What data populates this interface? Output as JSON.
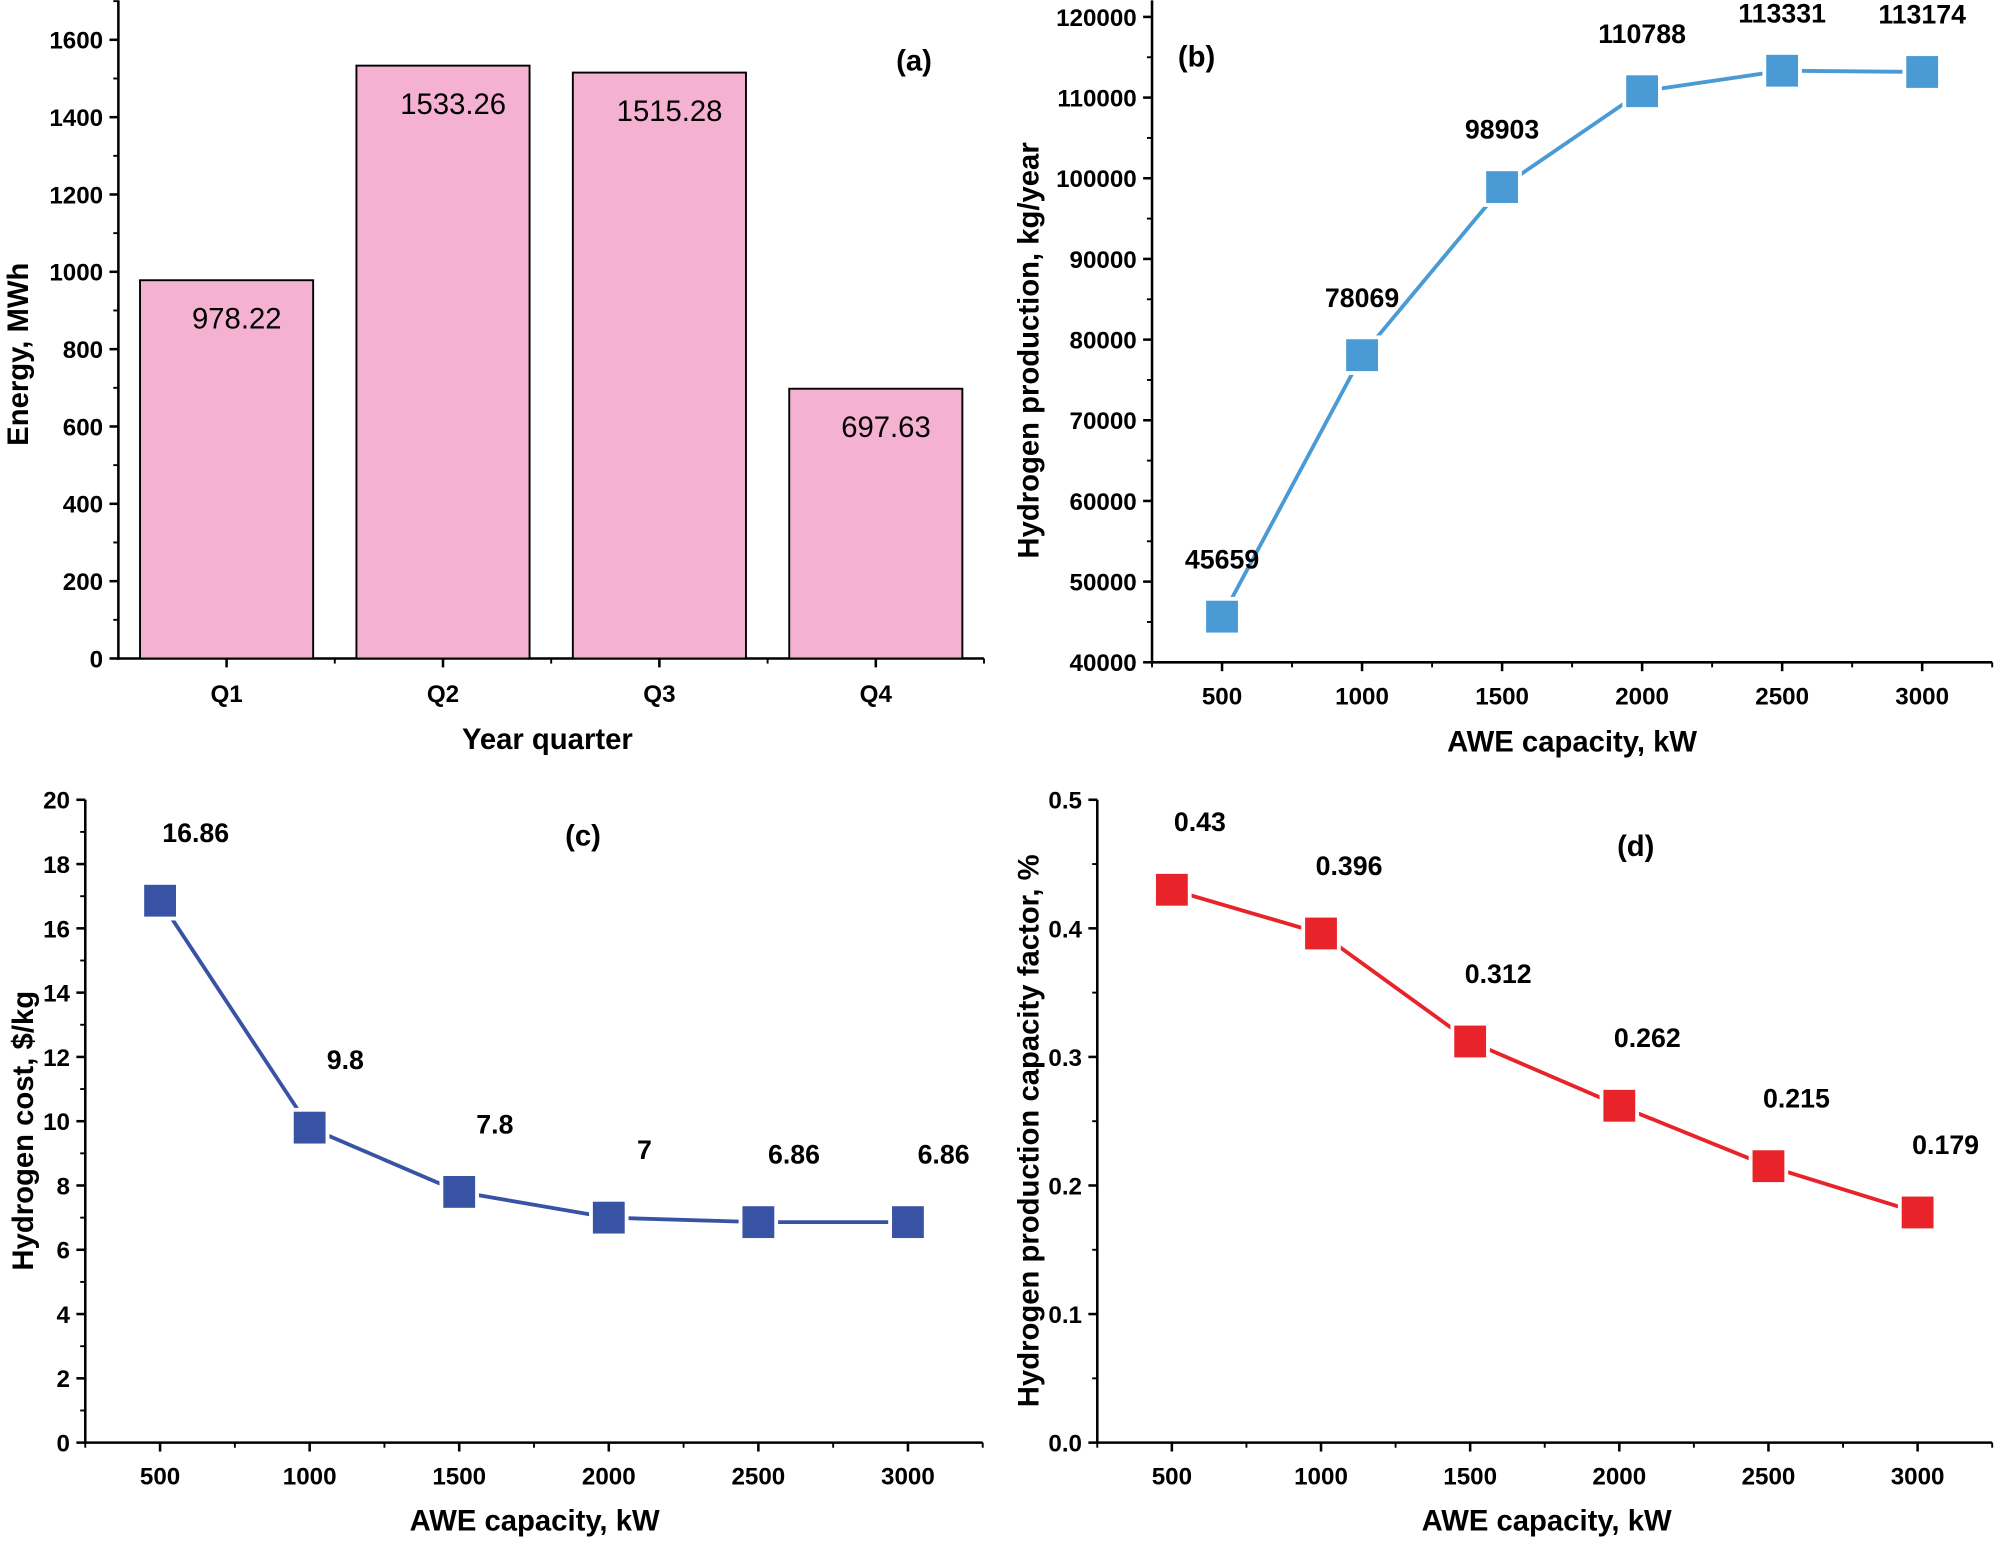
{
  "chart_data": [
    {
      "panel": "(a)",
      "type": "bar",
      "categories": [
        "Q1",
        "Q2",
        "Q3",
        "Q4"
      ],
      "values": [
        978.22,
        1533.26,
        1515.28,
        697.63
      ],
      "value_labels": [
        "978.22",
        "1533.26",
        "1515.28",
        "697.63"
      ],
      "xlabel": "Year quarter",
      "ylabel": "Energy, MWh",
      "ylim": [
        0,
        1700
      ],
      "yticks": [
        0,
        200,
        400,
        600,
        800,
        1000,
        1200,
        1400,
        1600
      ],
      "bar_color": "#f5b1d2",
      "grid": false
    },
    {
      "panel": "(b)",
      "type": "line",
      "x": [
        500,
        1000,
        1500,
        2000,
        2500,
        3000
      ],
      "y": [
        45659,
        78069,
        98903,
        110788,
        113331,
        113174
      ],
      "value_labels": [
        "45659",
        "78069",
        "98903",
        "110788",
        "113331",
        "113174"
      ],
      "xlabel": "AWE capacity, kW",
      "ylabel": "Hydrogen production, kg/year",
      "xlim": [
        250,
        3250
      ],
      "ylim": [
        40000,
        120000
      ],
      "xticks": [
        500,
        1000,
        1500,
        2000,
        2500,
        3000
      ],
      "yticks": [
        40000,
        50000,
        60000,
        70000,
        80000,
        90000,
        100000,
        110000,
        120000
      ],
      "marker": "square",
      "color": "#4a9ad6",
      "grid": false
    },
    {
      "panel": "(c)",
      "type": "line",
      "x": [
        500,
        1000,
        1500,
        2000,
        2500,
        3000
      ],
      "y": [
        16.86,
        9.8,
        7.8,
        7,
        6.86,
        6.86
      ],
      "value_labels": [
        "16.86",
        "9.8",
        "7.8",
        "7",
        "6.86",
        "6.86"
      ],
      "xlabel": "AWE capacity, kW",
      "ylabel": "Hydrogen cost, $/kg",
      "xlim": [
        250,
        3250
      ],
      "ylim": [
        0,
        20
      ],
      "xticks": [
        500,
        1000,
        1500,
        2000,
        2500,
        3000
      ],
      "yticks": [
        0,
        2,
        4,
        6,
        8,
        10,
        12,
        14,
        16,
        18,
        20
      ],
      "marker": "square",
      "color": "#3953a4",
      "grid": false
    },
    {
      "panel": "(d)",
      "type": "line",
      "x": [
        500,
        1000,
        1500,
        2000,
        2500,
        3000
      ],
      "y": [
        0.43,
        0.396,
        0.312,
        0.262,
        0.215,
        0.179
      ],
      "value_labels": [
        "0.43",
        "0.396",
        "0.312",
        "0.262",
        "0.215",
        "0.179"
      ],
      "xlabel": "AWE capacity, kW",
      "ylabel": "Hydrogen production capacity factor, %",
      "xlim": [
        250,
        3250
      ],
      "ylim": [
        0,
        0.5
      ],
      "xticks": [
        500,
        1000,
        1500,
        2000,
        2500,
        3000
      ],
      "yticks": [
        "0.0",
        "0.1",
        "0.2",
        "0.3",
        "0.4",
        "0.5"
      ],
      "marker": "square",
      "color": "#e8242a",
      "grid": false
    }
  ]
}
